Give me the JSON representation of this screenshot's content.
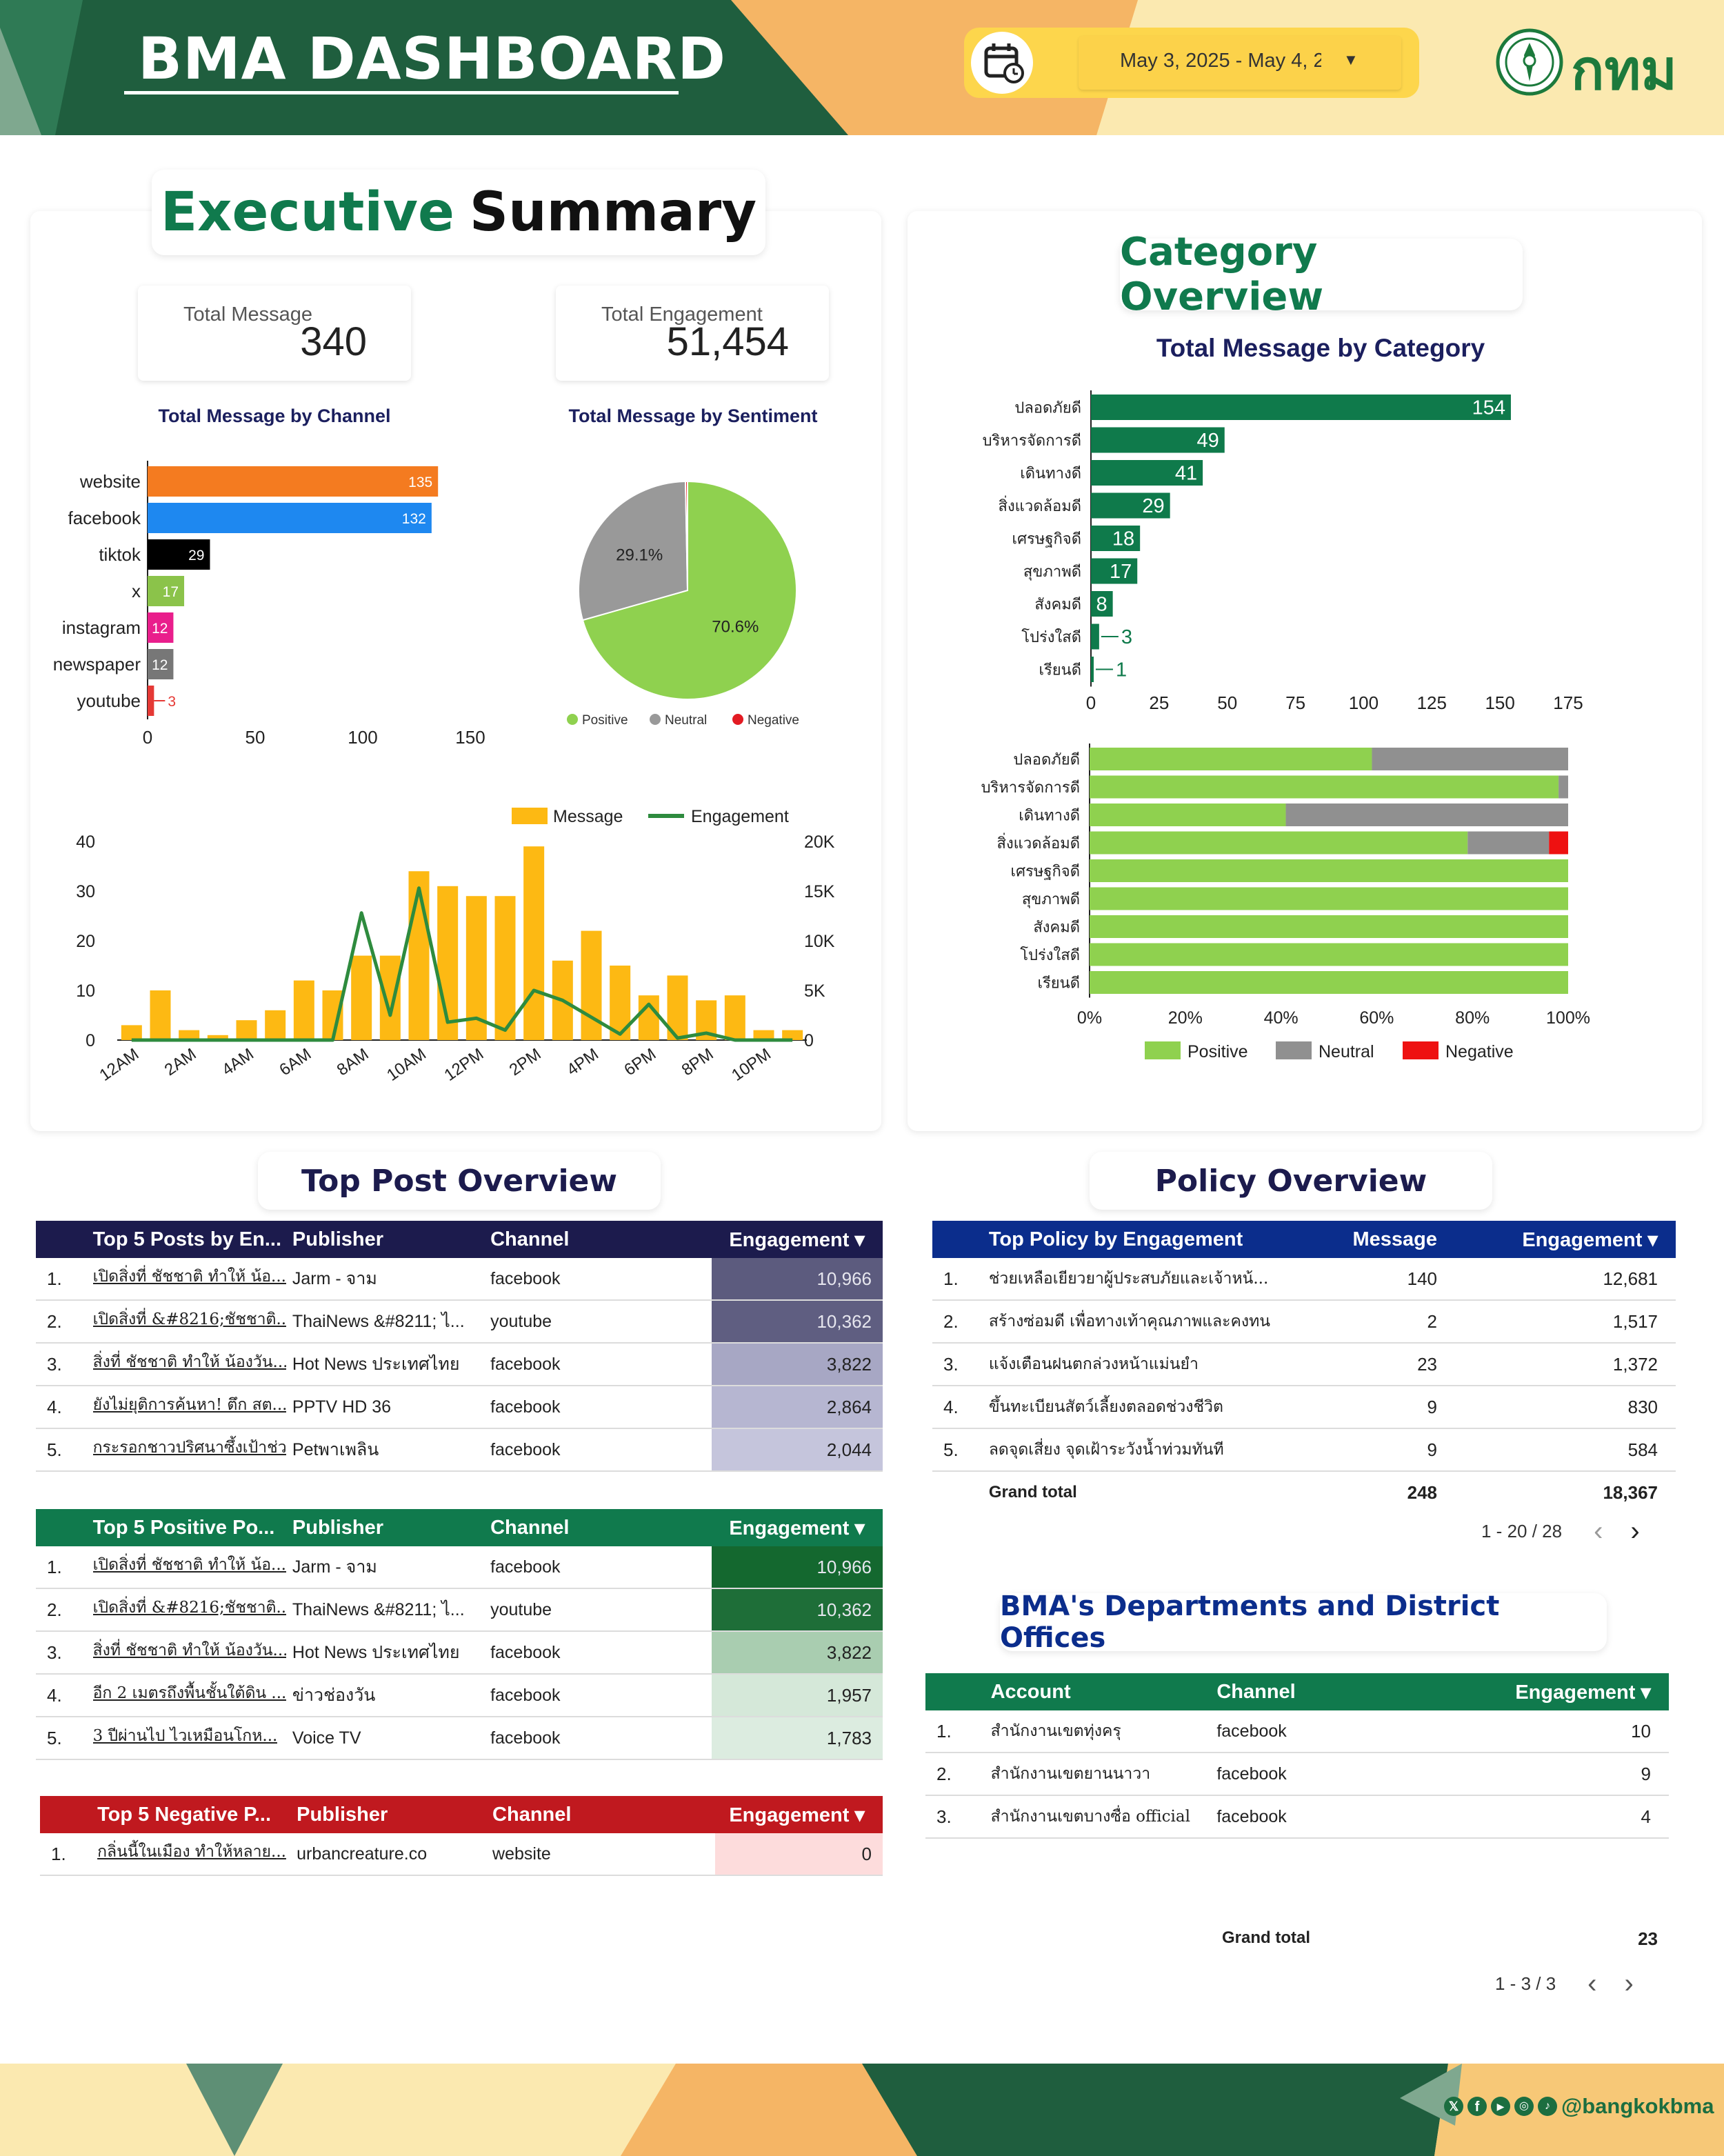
{
  "header": {
    "title": "BMA DASHBOARD",
    "date_range": "May 3, 2025 - May 4, 2",
    "logo_text": "กทม"
  },
  "exec": {
    "title_part1": "Executive",
    "title_part2": "Summary",
    "kpi_message_label": "Total Message",
    "kpi_message_value": "340",
    "kpi_engagement_label": "Total Engagement",
    "kpi_engagement_value": "51,454"
  },
  "category": {
    "title": "Category Overview"
  },
  "top_post": {
    "title": "Top Post Overview"
  },
  "policy_section": {
    "title": "Policy Overview"
  },
  "dept_section": {
    "title": "BMA's Departments and District Offices"
  },
  "chart_data": [
    {
      "type": "bar",
      "title": "Total Message by Channel",
      "orientation": "horizontal",
      "categories": [
        "website",
        "facebook",
        "tiktok",
        "x",
        "instagram",
        "newspaper",
        "youtube"
      ],
      "values": [
        135,
        132,
        29,
        17,
        12,
        12,
        3
      ],
      "colors": [
        "#f47b20",
        "#1e88f0",
        "#000000",
        "#8bc34a",
        "#e91e8c",
        "#777777",
        "#e53935"
      ],
      "xlim": [
        0,
        150
      ],
      "xticks": [
        0,
        50,
        100,
        150
      ]
    },
    {
      "type": "pie",
      "title": "Total Message by Sentiment",
      "labels": [
        "Positive",
        "Neutral",
        "Negative"
      ],
      "values": [
        70.6,
        29.1,
        0.3
      ],
      "colors": [
        "#8fd14f",
        "#999999",
        "#e31b23"
      ],
      "slice_labels": [
        "70.6%",
        "29.1%",
        ""
      ],
      "legend": "bottom"
    },
    {
      "type": "bar",
      "title": "",
      "categories": [
        "12AM",
        "1AM",
        "2AM",
        "3AM",
        "4AM",
        "5AM",
        "6AM",
        "7AM",
        "8AM",
        "9AM",
        "10AM",
        "11AM",
        "12PM",
        "1PM",
        "2PM",
        "3PM",
        "4PM",
        "5PM",
        "6PM",
        "7PM",
        "8PM",
        "9PM",
        "10PM",
        "11PM"
      ],
      "xtick_labels": [
        "12AM",
        "2AM",
        "4AM",
        "6AM",
        "8AM",
        "10AM",
        "12PM",
        "2PM",
        "4PM",
        "6PM",
        "8PM",
        "10PM"
      ],
      "series": [
        {
          "name": "Message",
          "kind": "bar",
          "axis": "left",
          "color": "#fdb913",
          "values": [
            3,
            10,
            2,
            1,
            4,
            6,
            12,
            10,
            17,
            17,
            34,
            31,
            29,
            29,
            39,
            16,
            22,
            15,
            9,
            13,
            8,
            9,
            2,
            2
          ]
        },
        {
          "name": "Engagement",
          "kind": "line",
          "axis": "right",
          "color": "#2e8b3e",
          "values": [
            0,
            0,
            0,
            0,
            0,
            0,
            0,
            0,
            12800,
            2500,
            15300,
            1800,
            2200,
            1000,
            5000,
            4000,
            2300,
            600,
            3600,
            200,
            700,
            0,
            0,
            0
          ]
        }
      ],
      "ylim_left": [
        0,
        40
      ],
      "yticks_left": [
        0,
        10,
        20,
        30,
        40
      ],
      "ylim_right": [
        0,
        20000
      ],
      "yticks_right": [
        "0",
        "5K",
        "10K",
        "15K",
        "20K"
      ],
      "legend": "top-right"
    },
    {
      "type": "bar",
      "title": "Total Message by Category",
      "orientation": "horizontal",
      "categories": [
        "ปลอดภัยดี",
        "บริหารจัดการดี",
        "เดินทางดี",
        "สิ่งแวดล้อมดี",
        "เศรษฐกิจดี",
        "สุขภาพดี",
        "สังคมดี",
        "โปร่งใสดี",
        "เรียนดี"
      ],
      "values": [
        154,
        49,
        41,
        29,
        18,
        17,
        8,
        3,
        1
      ],
      "color": "#0f7a4b",
      "xlim": [
        0,
        175
      ],
      "xticks": [
        0,
        25,
        50,
        75,
        100,
        125,
        150,
        175
      ]
    },
    {
      "type": "bar",
      "title": "",
      "orientation": "horizontal",
      "stacked": "percent",
      "categories": [
        "ปลอดภัยดี",
        "บริหารจัดการดี",
        "เดินทางดี",
        "สิ่งแวดล้อมดี",
        "เศรษฐกิจดี",
        "สุขภาพดี",
        "สังคมดี",
        "โปร่งใสดี",
        "เรียนดี"
      ],
      "series": [
        {
          "name": "Positive",
          "color": "#8fd14f",
          "values": [
            59,
            98,
            41,
            79,
            100,
            100,
            100,
            100,
            100
          ]
        },
        {
          "name": "Neutral",
          "color": "#909090",
          "values": [
            41,
            2,
            59,
            17,
            0,
            0,
            0,
            0,
            0
          ]
        },
        {
          "name": "Negative",
          "color": "#ee1111",
          "values": [
            0,
            0,
            0,
            4,
            0,
            0,
            0,
            0,
            0
          ]
        }
      ],
      "xticks": [
        "0%",
        "20%",
        "40%",
        "60%",
        "80%",
        "100%"
      ],
      "legend": "bottom"
    }
  ],
  "table_top5_engagement": {
    "columns": [
      "Top 5 Posts by En...",
      "Publisher",
      "Channel",
      "Engagement ▾"
    ],
    "header_color": "#1c1b4d",
    "rows": [
      {
        "rank": "1.",
        "post": "เปิดสิ่งที่ ชัชชาติ ทำให้ น้อ...",
        "publisher": "Jarm - จาม",
        "channel": "facebook",
        "engagement": "10,966",
        "shade": "#5c5b7e",
        "light": false
      },
      {
        "rank": "2.",
        "post": "เปิดสิ่งที่ &#8216;ชัชชาติ...",
        "publisher": "ThaiNews &#8211; ไ...",
        "channel": "youtube",
        "engagement": "10,362",
        "shade": "#5f5e81",
        "light": false
      },
      {
        "rank": "3.",
        "post": "สิ่งที่ ชัชชาติ ทำให้ น้องวัน...",
        "publisher": "Hot News ประเทศไทย",
        "channel": "facebook",
        "engagement": "3,822",
        "shade": "#a7a7c4",
        "light": true
      },
      {
        "rank": "4.",
        "post": "ยังไม่ยุติการค้นหา! ตึก สต...",
        "publisher": "PPTV HD 36",
        "channel": "facebook",
        "engagement": "2,864",
        "shade": "#b6b6d1",
        "light": true
      },
      {
        "rank": "5.",
        "post": "กระรอกชาวปริศนาซึ้งเป้าช่ว...",
        "publisher": "Petพาเพลิน",
        "channel": "facebook",
        "engagement": "2,044",
        "shade": "#c5c5dc",
        "light": true
      }
    ]
  },
  "table_top5_positive": {
    "columns": [
      "Top 5 Positive Po...",
      "Publisher",
      "Channel",
      "Engagement ▾"
    ],
    "header_color": "#107a4d",
    "rows": [
      {
        "rank": "1.",
        "post": "เปิดสิ่งที่ ชัชชาติ ทำให้ น้อ...",
        "publisher": "Jarm - จาม",
        "channel": "facebook",
        "engagement": "10,966",
        "shade": "#14682f",
        "light": false
      },
      {
        "rank": "2.",
        "post": "เปิดสิ่งที่ &#8216;ชัชชาติ...",
        "publisher": "ThaiNews &#8211; ไ...",
        "channel": "youtube",
        "engagement": "10,362",
        "shade": "#1e6e38",
        "light": false
      },
      {
        "rank": "3.",
        "post": "สิ่งที่ ชัชชาติ ทำให้ น้องวัน...",
        "publisher": "Hot News ประเทศไทย",
        "channel": "facebook",
        "engagement": "3,822",
        "shade": "#a9cdb0",
        "light": true
      },
      {
        "rank": "4.",
        "post": "อีก 2 เมตรถึงพื้นชั้นใต้ดิน ...",
        "publisher": "ข่าวช่องวัน",
        "channel": "facebook",
        "engagement": "1,957",
        "shade": "#d5e8d9",
        "light": true
      },
      {
        "rank": "5.",
        "post": "3 ปีผ่านไป ไวเหมือนโกห...",
        "publisher": "Voice TV",
        "channel": "facebook",
        "engagement": "1,783",
        "shade": "#dcece0",
        "light": true
      }
    ]
  },
  "table_top5_negative": {
    "columns": [
      "Top 5 Negative P...",
      "Publisher",
      "Channel",
      "Engagement ▾"
    ],
    "header_color": "#c0191f",
    "rows": [
      {
        "rank": "1.",
        "post": "กลิ่นนี้ในเมือง ทำให้หลาย...",
        "publisher": "urbancreature.co",
        "channel": "website",
        "engagement": "0",
        "shade": "#fddcdc",
        "light": true
      }
    ]
  },
  "table_policy": {
    "columns": [
      "Top Policy by Engagement",
      "Message",
      "Engagement ▾"
    ],
    "header_color": "#0b2d8c",
    "rows": [
      {
        "rank": "1.",
        "policy": "ช่วยเหลือเยียวยาผู้ประสบภัยและเจ้าหน้...",
        "message": "140",
        "engagement": "12,681"
      },
      {
        "rank": "2.",
        "policy": "สร้างซ่อมดี เพื่อทางเท้าคุณภาพและคงทน",
        "message": "2",
        "engagement": "1,517"
      },
      {
        "rank": "3.",
        "policy": "แจ้งเตือนฝนตกล่วงหน้าแม่นยำ",
        "message": "23",
        "engagement": "1,372"
      },
      {
        "rank": "4.",
        "policy": "ขึ้นทะเบียนสัตว์เลี้ยงตลอดช่วงชีวิต",
        "message": "9",
        "engagement": "830"
      },
      {
        "rank": "5.",
        "policy": "ลดจุดเสี่ยง จุดเฝ้าระวังน้ำท่วมทันที",
        "message": "9",
        "engagement": "584"
      }
    ],
    "grand_total_label": "Grand total",
    "grand_total_message": "248",
    "grand_total_engagement": "18,367",
    "pager_text": "1 - 20 / 28",
    "prev_icon": "‹",
    "next_icon": "›"
  },
  "table_dept": {
    "columns": [
      "Account",
      "Channel",
      "Engagement ▾"
    ],
    "header_color": "#107a4d",
    "rows": [
      {
        "rank": "1.",
        "account": "สำนักงานเขตทุ่งครุ",
        "channel": "facebook",
        "engagement": "10"
      },
      {
        "rank": "2.",
        "account": "สำนักงานเขตยานนาวา",
        "channel": "facebook",
        "engagement": "9"
      },
      {
        "rank": "3.",
        "account": "สำนักงานเขตบางซื่อ official",
        "channel": "facebook",
        "engagement": "4"
      }
    ],
    "grand_total_label": "Grand total",
    "grand_total_value": "23",
    "pager_text": "1 - 3 / 3",
    "prev_icon": "‹",
    "next_icon": "›"
  },
  "footer": {
    "social_handle": "@bangkokbma",
    "social_icons": [
      "x-icon",
      "facebook-icon",
      "youtube-icon",
      "instagram-icon",
      "tiktok-icon"
    ]
  }
}
